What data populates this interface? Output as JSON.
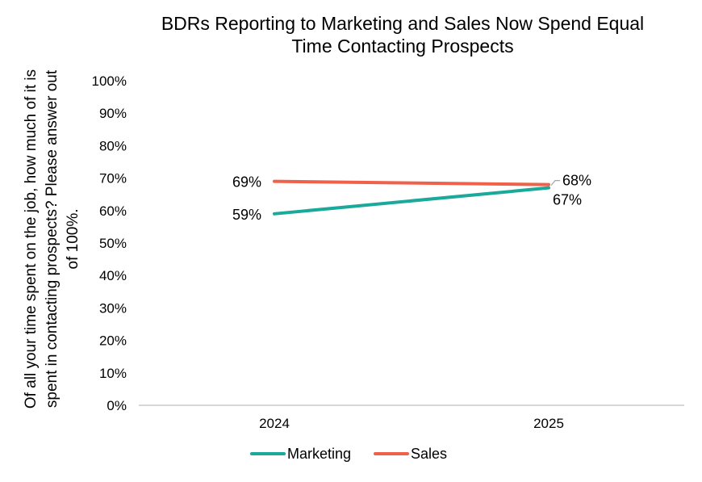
{
  "chart_data": {
    "type": "line",
    "title_lines": [
      "BDRs Reporting to Marketing and Sales Now Spend Equal",
      "Time Contacting Prospects"
    ],
    "ylabel_lines": [
      "Of all your time spent on the job, how much of it is",
      "spent in contacting prospects? Please answer out",
      "of 100%."
    ],
    "categories": [
      "2024",
      "2025"
    ],
    "ylim": [
      0,
      100
    ],
    "yticks": [
      0,
      10,
      20,
      30,
      40,
      50,
      60,
      70,
      80,
      90,
      100
    ],
    "ytick_labels": [
      "0%",
      "10%",
      "20%",
      "30%",
      "40%",
      "50%",
      "60%",
      "70%",
      "80%",
      "90%",
      "100%"
    ],
    "grid": false,
    "legend_position": "bottom",
    "series": [
      {
        "name": "Marketing",
        "color": "#1aa99a",
        "values": [
          59,
          67
        ],
        "labels": [
          "59%",
          "67%"
        ]
      },
      {
        "name": "Sales",
        "color": "#f0614a",
        "values": [
          69,
          68
        ],
        "labels": [
          "69%",
          "68%"
        ]
      }
    ]
  }
}
